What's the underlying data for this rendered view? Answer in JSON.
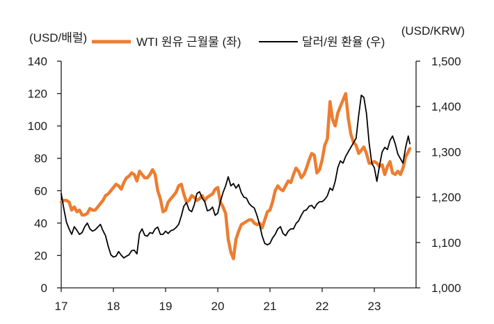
{
  "chart_data": {
    "type": "line",
    "left_unit": "(USD/배럴)",
    "right_unit": "(USD/KRW)",
    "x_ticks": [
      "17",
      "18",
      "19",
      "20",
      "21",
      "22",
      "23"
    ],
    "x_range": [
      2017.0,
      2023.8
    ],
    "left_axis": {
      "range": [
        0,
        140
      ],
      "ticks": [
        "0",
        "20",
        "40",
        "60",
        "80",
        "100",
        "120",
        "140"
      ]
    },
    "right_axis": {
      "range": [
        1000,
        1500
      ],
      "ticks": [
        "1,000",
        "1,100",
        "1,200",
        "1,300",
        "1,400",
        "1,500"
      ]
    },
    "legend_position": "top",
    "series": [
      {
        "name": "WTI 원유 근월물 (좌)",
        "axis": "left",
        "color": "#ED7D31",
        "points": [
          [
            2017.0,
            53
          ],
          [
            2017.05,
            54
          ],
          [
            2017.1,
            54
          ],
          [
            2017.15,
            53
          ],
          [
            2017.2,
            48
          ],
          [
            2017.25,
            50
          ],
          [
            2017.3,
            47
          ],
          [
            2017.35,
            48
          ],
          [
            2017.4,
            45
          ],
          [
            2017.45,
            45
          ],
          [
            2017.5,
            46
          ],
          [
            2017.55,
            49
          ],
          [
            2017.6,
            48
          ],
          [
            2017.65,
            48
          ],
          [
            2017.7,
            50
          ],
          [
            2017.75,
            52
          ],
          [
            2017.8,
            54
          ],
          [
            2017.85,
            57
          ],
          [
            2017.9,
            58
          ],
          [
            2017.95,
            60
          ],
          [
            2018.0,
            62
          ],
          [
            2018.05,
            64
          ],
          [
            2018.1,
            63
          ],
          [
            2018.15,
            61
          ],
          [
            2018.2,
            65
          ],
          [
            2018.25,
            68
          ],
          [
            2018.3,
            69
          ],
          [
            2018.35,
            71
          ],
          [
            2018.4,
            70
          ],
          [
            2018.45,
            66
          ],
          [
            2018.5,
            72
          ],
          [
            2018.55,
            70
          ],
          [
            2018.6,
            68
          ],
          [
            2018.65,
            68
          ],
          [
            2018.7,
            70
          ],
          [
            2018.75,
            73
          ],
          [
            2018.8,
            70
          ],
          [
            2018.85,
            60
          ],
          [
            2018.9,
            55
          ],
          [
            2018.95,
            47
          ],
          [
            2019.0,
            48
          ],
          [
            2019.05,
            53
          ],
          [
            2019.1,
            55
          ],
          [
            2019.15,
            57
          ],
          [
            2019.2,
            59
          ],
          [
            2019.25,
            63
          ],
          [
            2019.3,
            64
          ],
          [
            2019.35,
            58
          ],
          [
            2019.4,
            53
          ],
          [
            2019.45,
            54
          ],
          [
            2019.5,
            57
          ],
          [
            2019.55,
            56
          ],
          [
            2019.6,
            54
          ],
          [
            2019.65,
            55
          ],
          [
            2019.7,
            57
          ],
          [
            2019.75,
            54
          ],
          [
            2019.8,
            56
          ],
          [
            2019.85,
            57
          ],
          [
            2019.9,
            58
          ],
          [
            2019.95,
            61
          ],
          [
            2020.0,
            62
          ],
          [
            2020.05,
            53
          ],
          [
            2020.1,
            50
          ],
          [
            2020.15,
            46
          ],
          [
            2020.2,
            30
          ],
          [
            2020.25,
            22
          ],
          [
            2020.3,
            18
          ],
          [
            2020.35,
            30
          ],
          [
            2020.4,
            35
          ],
          [
            2020.45,
            39
          ],
          [
            2020.5,
            40
          ],
          [
            2020.55,
            41
          ],
          [
            2020.6,
            42
          ],
          [
            2020.65,
            42
          ],
          [
            2020.7,
            40
          ],
          [
            2020.75,
            39
          ],
          [
            2020.8,
            40
          ],
          [
            2020.85,
            37
          ],
          [
            2020.9,
            42
          ],
          [
            2020.95,
            47
          ],
          [
            2021.0,
            48
          ],
          [
            2021.05,
            53
          ],
          [
            2021.1,
            60
          ],
          [
            2021.15,
            63
          ],
          [
            2021.2,
            61
          ],
          [
            2021.25,
            60
          ],
          [
            2021.3,
            63
          ],
          [
            2021.35,
            66
          ],
          [
            2021.4,
            65
          ],
          [
            2021.45,
            70
          ],
          [
            2021.5,
            74
          ],
          [
            2021.55,
            72
          ],
          [
            2021.6,
            68
          ],
          [
            2021.65,
            70
          ],
          [
            2021.7,
            74
          ],
          [
            2021.75,
            79
          ],
          [
            2021.8,
            83
          ],
          [
            2021.85,
            82
          ],
          [
            2021.9,
            71
          ],
          [
            2021.95,
            73
          ],
          [
            2022.0,
            79
          ],
          [
            2022.05,
            88
          ],
          [
            2022.1,
            92
          ],
          [
            2022.15,
            115
          ],
          [
            2022.2,
            104
          ],
          [
            2022.25,
            100
          ],
          [
            2022.3,
            108
          ],
          [
            2022.35,
            112
          ],
          [
            2022.4,
            116
          ],
          [
            2022.45,
            120
          ],
          [
            2022.5,
            105
          ],
          [
            2022.55,
            95
          ],
          [
            2022.6,
            90
          ],
          [
            2022.65,
            88
          ],
          [
            2022.7,
            83
          ],
          [
            2022.75,
            85
          ],
          [
            2022.8,
            87
          ],
          [
            2022.85,
            83
          ],
          [
            2022.9,
            77
          ],
          [
            2022.95,
            77
          ],
          [
            2023.0,
            78
          ],
          [
            2023.05,
            77
          ],
          [
            2023.1,
            75
          ],
          [
            2023.15,
            76
          ],
          [
            2023.2,
            70
          ],
          [
            2023.25,
            75
          ],
          [
            2023.3,
            78
          ],
          [
            2023.35,
            71
          ],
          [
            2023.4,
            70
          ],
          [
            2023.45,
            72
          ],
          [
            2023.5,
            70
          ],
          [
            2023.55,
            74
          ],
          [
            2023.6,
            81
          ],
          [
            2023.65,
            84
          ],
          [
            2023.68,
            86
          ]
        ]
      },
      {
        "name": "달러/원 환율 (우)",
        "axis": "right",
        "color": "#000000",
        "points": [
          [
            2017.0,
            1208
          ],
          [
            2017.05,
            1175
          ],
          [
            2017.1,
            1145
          ],
          [
            2017.15,
            1130
          ],
          [
            2017.2,
            1118
          ],
          [
            2017.25,
            1135
          ],
          [
            2017.3,
            1127
          ],
          [
            2017.35,
            1118
          ],
          [
            2017.4,
            1122
          ],
          [
            2017.45,
            1135
          ],
          [
            2017.5,
            1143
          ],
          [
            2017.55,
            1130
          ],
          [
            2017.6,
            1125
          ],
          [
            2017.65,
            1128
          ],
          [
            2017.7,
            1134
          ],
          [
            2017.75,
            1140
          ],
          [
            2017.8,
            1126
          ],
          [
            2017.85,
            1115
          ],
          [
            2017.9,
            1092
          ],
          [
            2017.95,
            1073
          ],
          [
            2018.0,
            1068
          ],
          [
            2018.05,
            1070
          ],
          [
            2018.1,
            1080
          ],
          [
            2018.15,
            1072
          ],
          [
            2018.2,
            1066
          ],
          [
            2018.25,
            1070
          ],
          [
            2018.3,
            1073
          ],
          [
            2018.35,
            1082
          ],
          [
            2018.4,
            1083
          ],
          [
            2018.45,
            1075
          ],
          [
            2018.5,
            1120
          ],
          [
            2018.55,
            1130
          ],
          [
            2018.6,
            1116
          ],
          [
            2018.65,
            1114
          ],
          [
            2018.7,
            1122
          ],
          [
            2018.75,
            1120
          ],
          [
            2018.8,
            1130
          ],
          [
            2018.85,
            1134
          ],
          [
            2018.9,
            1118
          ],
          [
            2018.95,
            1118
          ],
          [
            2019.0,
            1125
          ],
          [
            2019.05,
            1120
          ],
          [
            2019.1,
            1126
          ],
          [
            2019.15,
            1128
          ],
          [
            2019.2,
            1133
          ],
          [
            2019.25,
            1140
          ],
          [
            2019.3,
            1158
          ],
          [
            2019.35,
            1180
          ],
          [
            2019.4,
            1188
          ],
          [
            2019.45,
            1172
          ],
          [
            2019.5,
            1168
          ],
          [
            2019.55,
            1183
          ],
          [
            2019.6,
            1208
          ],
          [
            2019.65,
            1212
          ],
          [
            2019.7,
            1198
          ],
          [
            2019.75,
            1190
          ],
          [
            2019.8,
            1170
          ],
          [
            2019.85,
            1172
          ],
          [
            2019.9,
            1178
          ],
          [
            2019.95,
            1160
          ],
          [
            2020.0,
            1165
          ],
          [
            2020.05,
            1190
          ],
          [
            2020.1,
            1210
          ],
          [
            2020.15,
            1225
          ],
          [
            2020.2,
            1245
          ],
          [
            2020.25,
            1225
          ],
          [
            2020.3,
            1230
          ],
          [
            2020.35,
            1220
          ],
          [
            2020.4,
            1228
          ],
          [
            2020.45,
            1210
          ],
          [
            2020.5,
            1200
          ],
          [
            2020.55,
            1198
          ],
          [
            2020.6,
            1186
          ],
          [
            2020.65,
            1180
          ],
          [
            2020.7,
            1176
          ],
          [
            2020.75,
            1160
          ],
          [
            2020.8,
            1140
          ],
          [
            2020.85,
            1115
          ],
          [
            2020.9,
            1098
          ],
          [
            2020.95,
            1095
          ],
          [
            2021.0,
            1098
          ],
          [
            2021.05,
            1110
          ],
          [
            2021.1,
            1118
          ],
          [
            2021.15,
            1130
          ],
          [
            2021.2,
            1135
          ],
          [
            2021.25,
            1120
          ],
          [
            2021.3,
            1115
          ],
          [
            2021.35,
            1125
          ],
          [
            2021.4,
            1130
          ],
          [
            2021.45,
            1130
          ],
          [
            2021.5,
            1142
          ],
          [
            2021.55,
            1148
          ],
          [
            2021.6,
            1160
          ],
          [
            2021.65,
            1170
          ],
          [
            2021.7,
            1172
          ],
          [
            2021.75,
            1180
          ],
          [
            2021.8,
            1182
          ],
          [
            2021.85,
            1175
          ],
          [
            2021.9,
            1185
          ],
          [
            2021.95,
            1190
          ],
          [
            2022.0,
            1190
          ],
          [
            2022.05,
            1195
          ],
          [
            2022.1,
            1203
          ],
          [
            2022.15,
            1220
          ],
          [
            2022.2,
            1215
          ],
          [
            2022.25,
            1235
          ],
          [
            2022.3,
            1265
          ],
          [
            2022.35,
            1280
          ],
          [
            2022.4,
            1275
          ],
          [
            2022.45,
            1290
          ],
          [
            2022.5,
            1300
          ],
          [
            2022.55,
            1310
          ],
          [
            2022.6,
            1320
          ],
          [
            2022.65,
            1330
          ],
          [
            2022.7,
            1380
          ],
          [
            2022.75,
            1425
          ],
          [
            2022.8,
            1420
          ],
          [
            2022.85,
            1385
          ],
          [
            2022.9,
            1320
          ],
          [
            2022.95,
            1275
          ],
          [
            2023.0,
            1265
          ],
          [
            2023.05,
            1235
          ],
          [
            2023.1,
            1270
          ],
          [
            2023.15,
            1300
          ],
          [
            2023.2,
            1310
          ],
          [
            2023.25,
            1305
          ],
          [
            2023.3,
            1325
          ],
          [
            2023.35,
            1335
          ],
          [
            2023.4,
            1318
          ],
          [
            2023.45,
            1295
          ],
          [
            2023.5,
            1285
          ],
          [
            2023.55,
            1275
          ],
          [
            2023.6,
            1310
          ],
          [
            2023.65,
            1335
          ],
          [
            2023.68,
            1318
          ]
        ]
      }
    ]
  }
}
